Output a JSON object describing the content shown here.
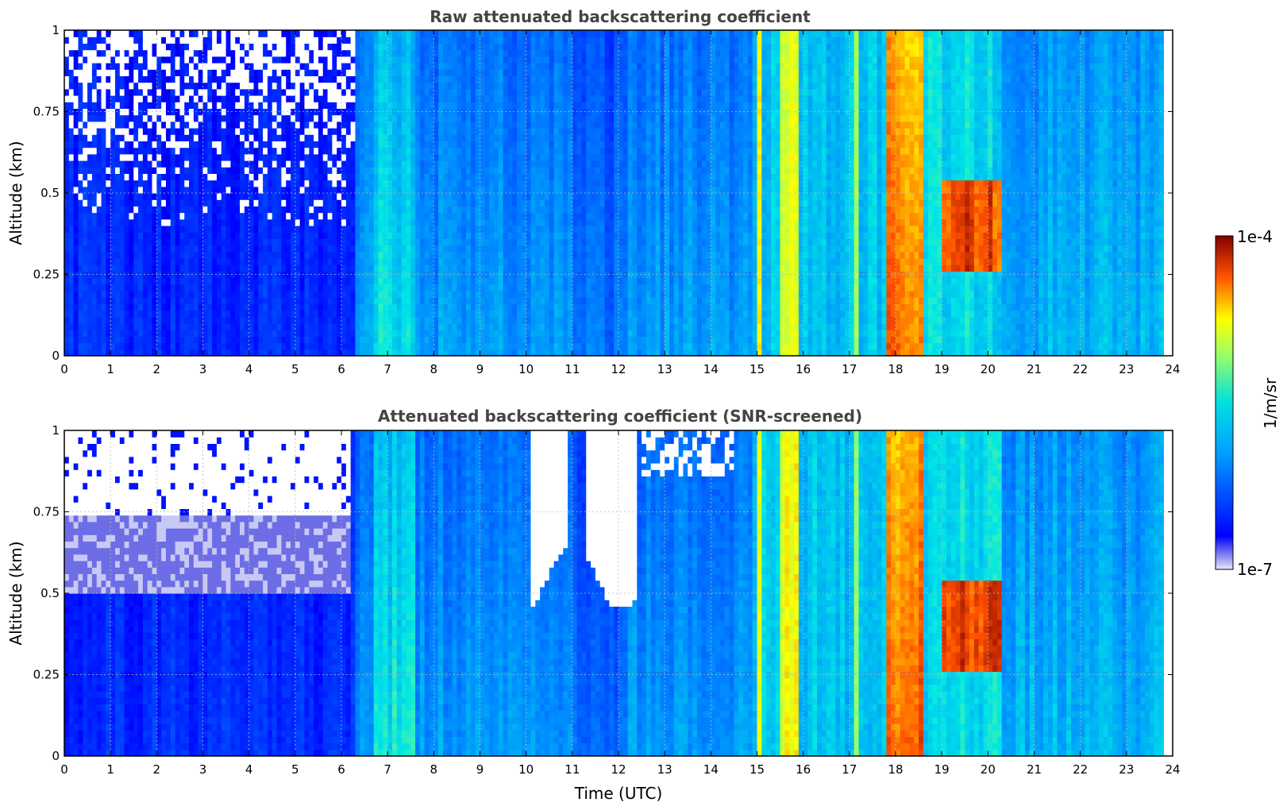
{
  "chart_data": [
    {
      "type": "heatmap",
      "title": "Raw attenuated backscattering coefficient",
      "xlabel": "",
      "ylabel": "Altitude (km)",
      "xlim": [
        0,
        24
      ],
      "ylim": [
        0,
        1
      ],
      "xticks": [
        "0",
        "1",
        "2",
        "3",
        "4",
        "5",
        "6",
        "7",
        "8",
        "9",
        "10",
        "11",
        "12",
        "13",
        "14",
        "15",
        "16",
        "17",
        "18",
        "19",
        "20",
        "21",
        "22",
        "23",
        "24"
      ],
      "yticks": [
        "0",
        "0.25",
        "0.5",
        "0.75",
        "1"
      ],
      "grid": true,
      "screened": false
    },
    {
      "type": "heatmap",
      "title": "Attenuated backscattering coefficient (SNR-screened)",
      "xlabel": "Time (UTC)",
      "ylabel": "Altitude (km)",
      "xlim": [
        0,
        24
      ],
      "ylim": [
        0,
        1
      ],
      "xticks": [
        "0",
        "1",
        "2",
        "3",
        "4",
        "5",
        "6",
        "7",
        "8",
        "9",
        "10",
        "11",
        "12",
        "13",
        "14",
        "15",
        "16",
        "17",
        "18",
        "19",
        "20",
        "21",
        "22",
        "23",
        "24"
      ],
      "yticks": [
        "0",
        "0.25",
        "0.5",
        "0.75",
        "1"
      ],
      "grid": true,
      "screened": true
    }
  ],
  "colorbar": {
    "label": "1/m/sr",
    "max_label": "1e-4",
    "min_label": "1e-7",
    "scale": "log",
    "colormap": "jet"
  },
  "colors": {
    "background": "#ffffff",
    "title": "#444444",
    "grid": "#bbbbbb"
  }
}
